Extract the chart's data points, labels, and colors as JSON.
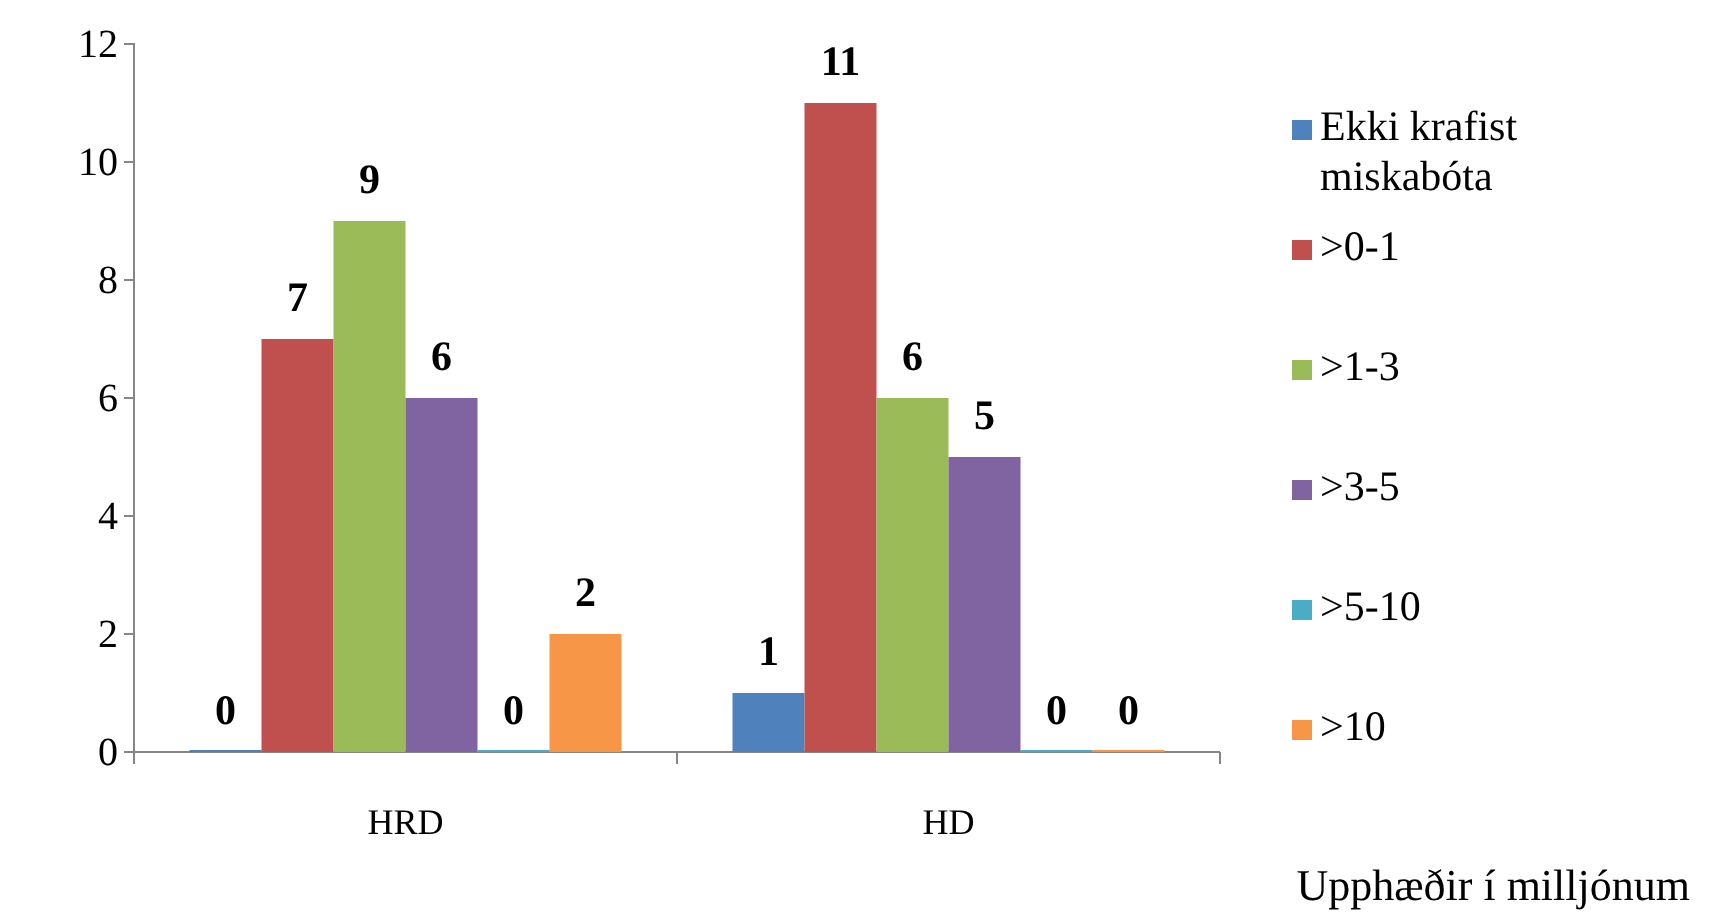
{
  "chart_data": {
    "type": "bar",
    "xlabel": "Upphæðir í milljónum",
    "categories": [
      "HRD",
      "HD"
    ],
    "series": [
      {
        "name": "Ekki krafist miskabóta",
        "color": "#4f81bd",
        "values": [
          0,
          1
        ]
      },
      {
        "name": ">0-1",
        "color": "#c0504d",
        "values": [
          7,
          11
        ]
      },
      {
        "name": ">1-3",
        "color": "#9bbb59",
        "values": [
          9,
          6
        ]
      },
      {
        "name": ">3-5",
        "color": "#8064a2",
        "values": [
          6,
          5
        ]
      },
      {
        "name": ">5-10",
        "color": "#4bacc6",
        "values": [
          0,
          0
        ]
      },
      {
        "name": ">10",
        "color": "#f79646",
        "values": [
          2,
          0
        ]
      }
    ],
    "ylim": [
      0,
      12
    ],
    "yticks": [
      0,
      2,
      4,
      6,
      8,
      10,
      12
    ],
    "data_labels": true,
    "legend": "right",
    "grid": false
  }
}
